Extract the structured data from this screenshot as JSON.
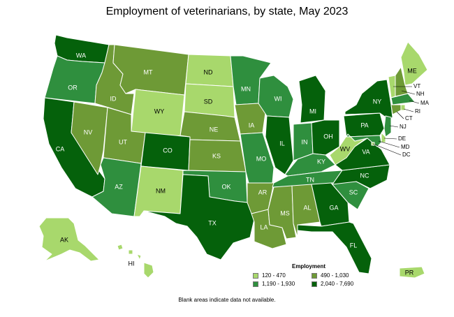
{
  "title": "Employment of veterinarians, by state, May 2023",
  "legend": {
    "title": "Employment",
    "bins": [
      {
        "label": "120 - 470",
        "color": "#a8d86c"
      },
      {
        "label": "490 - 1,030",
        "color": "#6e9a36"
      },
      {
        "label": "1,190 - 1,930",
        "color": "#2f8f3e"
      },
      {
        "label": "2,040 - 7,690",
        "color": "#05610b"
      }
    ]
  },
  "footnote": "Blank areas indicate data not available.",
  "states": [
    {
      "abbr": "WA",
      "bin": 3
    },
    {
      "abbr": "OR",
      "bin": 2
    },
    {
      "abbr": "CA",
      "bin": 3
    },
    {
      "abbr": "NV",
      "bin": 1
    },
    {
      "abbr": "ID",
      "bin": 1
    },
    {
      "abbr": "MT",
      "bin": 1
    },
    {
      "abbr": "WY",
      "bin": 0
    },
    {
      "abbr": "UT",
      "bin": 1
    },
    {
      "abbr": "AZ",
      "bin": 2
    },
    {
      "abbr": "CO",
      "bin": 3
    },
    {
      "abbr": "NM",
      "bin": 0
    },
    {
      "abbr": "ND",
      "bin": 0
    },
    {
      "abbr": "SD",
      "bin": 0
    },
    {
      "abbr": "NE",
      "bin": 1
    },
    {
      "abbr": "KS",
      "bin": 1
    },
    {
      "abbr": "OK",
      "bin": 2
    },
    {
      "abbr": "TX",
      "bin": 3
    },
    {
      "abbr": "MN",
      "bin": 2
    },
    {
      "abbr": "IA",
      "bin": 1
    },
    {
      "abbr": "MO",
      "bin": 2
    },
    {
      "abbr": "AR",
      "bin": 1
    },
    {
      "abbr": "LA",
      "bin": 1
    },
    {
      "abbr": "WI",
      "bin": 2
    },
    {
      "abbr": "IL",
      "bin": 3
    },
    {
      "abbr": "MI",
      "bin": 3
    },
    {
      "abbr": "IN",
      "bin": 2
    },
    {
      "abbr": "OH",
      "bin": 3
    },
    {
      "abbr": "KY",
      "bin": 2
    },
    {
      "abbr": "TN",
      "bin": 2
    },
    {
      "abbr": "MS",
      "bin": 1
    },
    {
      "abbr": "AL",
      "bin": 1
    },
    {
      "abbr": "GA",
      "bin": 3
    },
    {
      "abbr": "FL",
      "bin": 3
    },
    {
      "abbr": "SC",
      "bin": 2
    },
    {
      "abbr": "NC",
      "bin": 3
    },
    {
      "abbr": "VA",
      "bin": 3
    },
    {
      "abbr": "WV",
      "bin": 0
    },
    {
      "abbr": "PA",
      "bin": 3
    },
    {
      "abbr": "NY",
      "bin": 3
    },
    {
      "abbr": "ME",
      "bin": 0
    },
    {
      "abbr": "VT",
      "bin": 0
    },
    {
      "abbr": "NH",
      "bin": 1
    },
    {
      "abbr": "MA",
      "bin": 2
    },
    {
      "abbr": "RI",
      "bin": 0
    },
    {
      "abbr": "CT",
      "bin": 1
    },
    {
      "abbr": "NJ",
      "bin": 2
    },
    {
      "abbr": "DE",
      "bin": 0
    },
    {
      "abbr": "MD",
      "bin": 2
    },
    {
      "abbr": "DC",
      "bin": 0
    },
    {
      "abbr": "AK",
      "bin": 0
    },
    {
      "abbr": "HI",
      "bin": 0
    },
    {
      "abbr": "PR",
      "bin": 0
    }
  ]
}
